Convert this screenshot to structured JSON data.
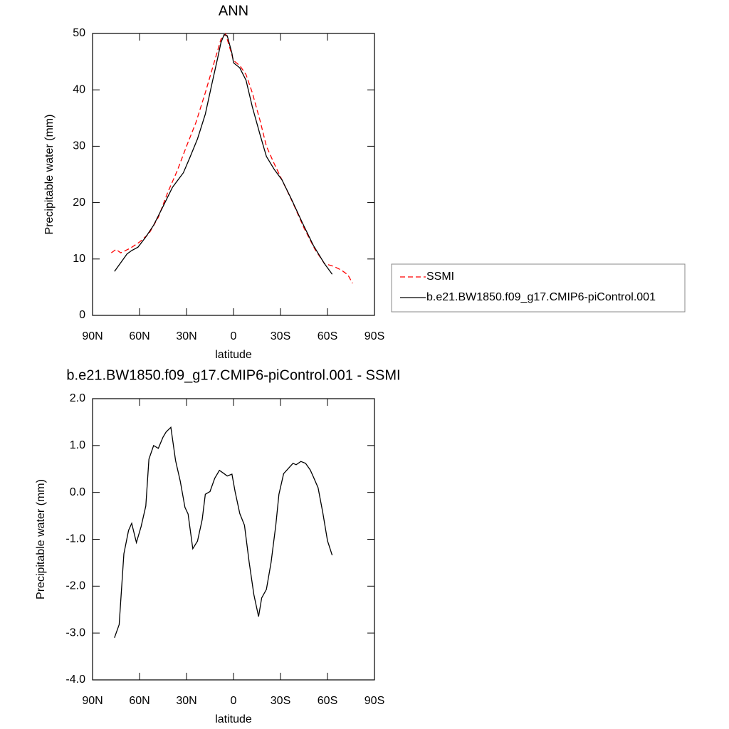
{
  "chart_data": [
    {
      "type": "line",
      "title": "ANN",
      "xlabel": "latitude",
      "ylabel": "Precipitable water (mm)",
      "xlim": [
        90,
        -90
      ],
      "xticks": [
        {
          "value": 90,
          "label": "90N"
        },
        {
          "value": 60,
          "label": "60N"
        },
        {
          "value": 30,
          "label": "30N"
        },
        0,
        {
          "value": -30,
          "label": "30S"
        },
        {
          "value": -60,
          "label": "60S"
        },
        {
          "value": -90,
          "label": "90S"
        }
      ],
      "ylim": [
        0,
        50
      ],
      "yticks": [
        0,
        10,
        20,
        30,
        40,
        50
      ],
      "legend": "right",
      "series": [
        {
          "name": "SSMI",
          "color": "#ff0000",
          "dashed": true,
          "x": [
            78,
            75,
            72,
            66,
            60,
            54,
            48,
            42,
            36,
            30,
            24,
            18,
            12,
            8,
            5,
            2,
            0,
            -4,
            -8,
            -12,
            -17,
            -21,
            -26,
            -31,
            -38,
            -45,
            -52,
            -58,
            -64,
            -69,
            -73,
            -76
          ],
          "values": [
            11.1,
            11.7,
            11.1,
            11.9,
            13.0,
            14.5,
            17.4,
            21.8,
            25.6,
            30,
            34.2,
            39.5,
            45.2,
            49,
            49.9,
            47.1,
            45.2,
            44.3,
            42.7,
            39.5,
            34.5,
            30,
            26.9,
            24,
            19.9,
            15.5,
            11.7,
            9.2,
            8.7,
            8,
            7.2,
            5.7
          ]
        },
        {
          "name": "b.e21.BW1850.f09_g17.CMIP6-piControl.001",
          "color": "#000000",
          "dashed": false,
          "x": [
            76,
            68,
            65,
            61,
            56,
            51,
            45,
            39,
            32,
            28,
            23,
            18,
            14,
            10,
            8,
            6,
            4,
            1,
            0,
            -4,
            -8,
            -12,
            -17,
            -21,
            -26,
            -31,
            -37,
            -44,
            -51,
            -58,
            -63
          ],
          "values": [
            7.8,
            10.9,
            11.5,
            12.1,
            13.9,
            16,
            19.3,
            22.7,
            25.3,
            27.9,
            31.3,
            35.7,
            40.8,
            45.8,
            48.4,
            49.8,
            49.6,
            46.5,
            44.8,
            43.9,
            41.7,
            37,
            32,
            28.2,
            25.9,
            24,
            20.6,
            16.4,
            12.4,
            9.2,
            7.3
          ]
        }
      ]
    },
    {
      "type": "line",
      "title": "b.e21.BW1850.f09_g17.CMIP6-piControl.001 - SSMI",
      "xlabel": "latitude",
      "ylabel": "Precipitable water (mm)",
      "xlim": [
        90,
        -90
      ],
      "xticks": [
        {
          "value": 90,
          "label": "90N"
        },
        {
          "value": 60,
          "label": "60N"
        },
        {
          "value": 30,
          "label": "30N"
        },
        0,
        {
          "value": -30,
          "label": "30S"
        },
        {
          "value": -60,
          "label": "60S"
        },
        {
          "value": -90,
          "label": "90S"
        }
      ],
      "ylim": [
        -4,
        2
      ],
      "yticks": [
        {
          "value": -4,
          "label": "-4.0"
        },
        {
          "value": -3,
          "label": "-3.0"
        },
        {
          "value": -2,
          "label": "-2.0"
        },
        {
          "value": -1,
          "label": "-1.0"
        },
        {
          "value": 0,
          "label": "0.0"
        },
        {
          "value": 1,
          "label": "1.0"
        },
        {
          "value": 2,
          "label": "2.0"
        }
      ],
      "series": [
        {
          "color": "#000000",
          "dashed": false,
          "x": [
            76,
            73,
            70,
            67,
            65,
            62,
            59,
            56,
            54,
            51,
            48,
            45,
            43,
            40,
            37,
            34,
            31,
            29,
            26,
            23,
            20,
            18,
            15,
            12,
            9,
            6,
            4,
            1,
            -1,
            -4,
            -7,
            -10,
            -13,
            -16,
            -18,
            -21,
            -24,
            -27,
            -29,
            -32,
            -35,
            -38,
            -40,
            -43,
            -46,
            -49,
            -51,
            -54,
            -57,
            -60,
            -63
          ],
          "values": [
            -3.1,
            -2.82,
            -1.31,
            -0.81,
            -0.66,
            -1.07,
            -0.73,
            -0.29,
            0.71,
            1.0,
            0.94,
            1.18,
            1.29,
            1.39,
            0.68,
            0.24,
            -0.32,
            -0.46,
            -1.2,
            -1.04,
            -0.58,
            -0.04,
            0.02,
            0.3,
            0.47,
            0.4,
            0.35,
            0.39,
            0.02,
            -0.45,
            -0.7,
            -1.49,
            -2.18,
            -2.65,
            -2.25,
            -2.07,
            -1.49,
            -0.7,
            -0.04,
            0.4,
            0.51,
            0.62,
            0.59,
            0.66,
            0.62,
            0.48,
            0.33,
            0.1,
            -0.43,
            -1.03,
            -1.34
          ]
        }
      ]
    }
  ]
}
